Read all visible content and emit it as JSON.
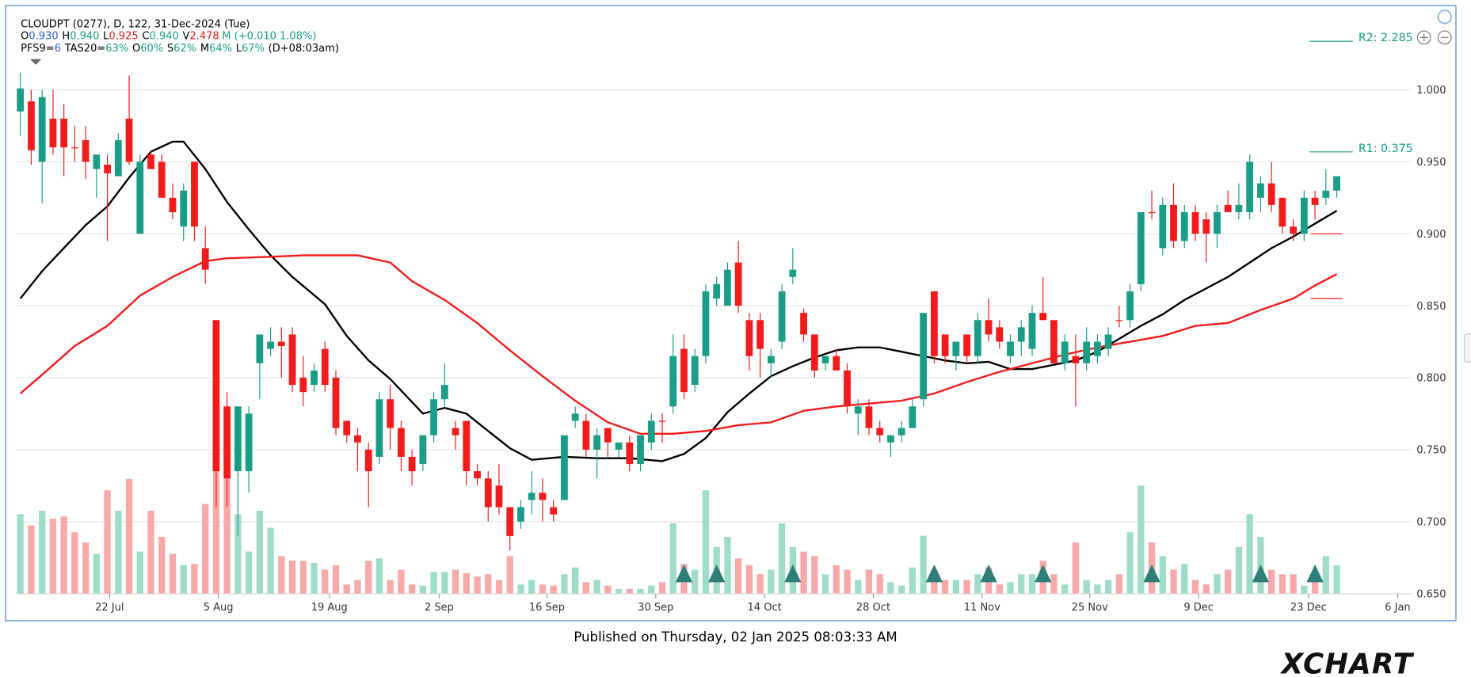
{
  "chart_data": {
    "type": "candlestick",
    "header": {
      "title": "CLOUDPT (0277), D, 122, 31-Dec-2024 (Tue)",
      "quote": [
        {
          "label": "O",
          "value": "0.930",
          "color": "#2a5fd0"
        },
        {
          "label": "H",
          "value": "0.940",
          "color": "#18a085"
        },
        {
          "label": "L",
          "value": "0.925",
          "color": "#e02020"
        },
        {
          "label": "C",
          "value": "0.940",
          "color": "#18a085"
        },
        {
          "label": "V",
          "value": "2.478",
          "color": "#e02020"
        }
      ],
      "quote_suffix": "M (+0.010 1.08%)",
      "indicators": [
        {
          "label": "PFS9=",
          "value": "6",
          "color": "#2a5fd0"
        },
        {
          "label": "TAS20=",
          "value": "63%",
          "color": "#18a085"
        },
        {
          "label": "O",
          "value": "60%",
          "color": "#18a085"
        },
        {
          "label": "S",
          "value": "62%",
          "color": "#18a085"
        },
        {
          "label": "M",
          "value": "64%",
          "color": "#18a085"
        },
        {
          "label": "L",
          "value": "67%",
          "color": "#18a085"
        }
      ],
      "indicators_suffix": "(D+08:03am)"
    },
    "pivots": [
      {
        "label": "R2: 2.285"
      },
      {
        "label": "R1: 0.375"
      }
    ],
    "up_color": "#1a9c86",
    "down_color": "#f21b1b",
    "volume_up_color": "#9fdcc8",
    "volume_down_color": "#f7a8a8",
    "signal_color": "#2f7f78",
    "open": [
      0.985,
      0.992,
      0.95,
      0.98,
      0.98,
      0.96,
      0.965,
      0.945,
      0.948,
      0.94,
      0.98,
      0.9,
      0.955,
      0.95,
      0.925,
      0.905,
      0.95,
      0.89,
      0.84,
      0.78,
      0.735,
      0.735,
      0.81,
      0.82,
      0.825,
      0.83,
      0.8,
      0.795,
      0.82,
      0.8,
      0.77,
      0.76,
      0.75,
      0.745,
      0.785,
      0.765,
      0.745,
      0.74,
      0.76,
      0.785,
      0.765,
      0.77,
      0.735,
      0.73,
      0.725,
      0.71,
      0.7,
      0.715,
      0.72,
      0.71,
      0.715,
      0.77,
      0.77,
      0.75,
      0.765,
      0.75,
      0.755,
      0.74,
      0.755,
      0.77,
      0.78,
      0.82,
      0.795,
      0.815,
      0.855,
      0.85,
      0.88,
      0.84,
      0.84,
      0.81,
      0.825,
      0.87,
      0.845,
      0.83,
      0.81,
      0.815,
      0.805,
      0.775,
      0.78,
      0.765,
      0.755,
      0.76,
      0.765,
      0.785,
      0.86,
      0.83,
      0.815,
      0.83,
      0.815,
      0.84,
      0.835,
      0.815,
      0.825,
      0.82,
      0.845,
      0.84,
      0.81,
      0.815,
      0.81,
      0.815,
      0.82,
      0.84,
      0.84,
      0.865,
      0.915,
      0.89,
      0.92,
      0.895,
      0.915,
      0.91,
      0.9,
      0.92,
      0.915,
      0.915,
      0.925,
      0.935,
      0.925,
      0.905,
      0.9,
      0.925,
      0.925,
      0.93
    ],
    "high": [
      1.012,
      1.0,
      1.0,
      1.0,
      0.99,
      0.975,
      0.975,
      0.955,
      0.955,
      0.97,
      1.01,
      0.955,
      0.958,
      0.955,
      0.935,
      0.935,
      0.95,
      0.905,
      0.84,
      0.79,
      0.78,
      0.78,
      0.83,
      0.835,
      0.835,
      0.835,
      0.815,
      0.81,
      0.825,
      0.805,
      0.77,
      0.765,
      0.755,
      0.79,
      0.795,
      0.77,
      0.75,
      0.76,
      0.79,
      0.81,
      0.77,
      0.77,
      0.74,
      0.735,
      0.74,
      0.71,
      0.715,
      0.735,
      0.73,
      0.715,
      0.76,
      0.78,
      0.775,
      0.765,
      0.765,
      0.755,
      0.76,
      0.76,
      0.775,
      0.775,
      0.83,
      0.83,
      0.82,
      0.865,
      0.87,
      0.88,
      0.895,
      0.845,
      0.845,
      0.82,
      0.865,
      0.89,
      0.848,
      0.83,
      0.815,
      0.82,
      0.81,
      0.785,
      0.785,
      0.77,
      0.76,
      0.77,
      0.785,
      0.845,
      0.86,
      0.83,
      0.825,
      0.83,
      0.845,
      0.855,
      0.84,
      0.83,
      0.84,
      0.85,
      0.87,
      0.84,
      0.83,
      0.83,
      0.835,
      0.83,
      0.835,
      0.85,
      0.865,
      0.915,
      0.93,
      0.925,
      0.935,
      0.92,
      0.92,
      0.915,
      0.92,
      0.93,
      0.935,
      0.955,
      0.94,
      0.95,
      0.925,
      0.91,
      0.93,
      0.93,
      0.945,
      0.94
    ],
    "low": [
      0.968,
      0.948,
      0.921,
      0.955,
      0.94,
      0.95,
      0.938,
      0.925,
      0.895,
      0.94,
      0.948,
      0.9,
      0.945,
      0.925,
      0.91,
      0.895,
      0.895,
      0.865,
      0.71,
      0.71,
      0.69,
      0.72,
      0.785,
      0.815,
      0.8,
      0.79,
      0.78,
      0.79,
      0.79,
      0.76,
      0.755,
      0.735,
      0.71,
      0.74,
      0.75,
      0.735,
      0.725,
      0.735,
      0.755,
      0.78,
      0.75,
      0.725,
      0.725,
      0.7,
      0.705,
      0.68,
      0.695,
      0.705,
      0.7,
      0.7,
      0.715,
      0.765,
      0.745,
      0.73,
      0.745,
      0.745,
      0.735,
      0.735,
      0.75,
      0.755,
      0.775,
      0.785,
      0.79,
      0.81,
      0.85,
      0.85,
      0.845,
      0.805,
      0.8,
      0.8,
      0.82,
      0.865,
      0.825,
      0.8,
      0.805,
      0.805,
      0.775,
      0.76,
      0.76,
      0.755,
      0.745,
      0.755,
      0.765,
      0.78,
      0.81,
      0.81,
      0.805,
      0.81,
      0.81,
      0.825,
      0.82,
      0.81,
      0.815,
      0.815,
      0.84,
      0.81,
      0.805,
      0.78,
      0.805,
      0.81,
      0.815,
      0.835,
      0.835,
      0.86,
      0.91,
      0.885,
      0.89,
      0.89,
      0.895,
      0.88,
      0.89,
      0.915,
      0.91,
      0.91,
      0.915,
      0.915,
      0.9,
      0.895,
      0.895,
      0.91,
      0.92,
      0.925
    ],
    "close": [
      1.001,
      0.958,
      0.995,
      0.96,
      0.96,
      0.96,
      0.95,
      0.955,
      0.942,
      0.965,
      0.95,
      0.95,
      0.945,
      0.925,
      0.915,
      0.93,
      0.905,
      0.875,
      0.735,
      0.73,
      0.78,
      0.775,
      0.83,
      0.825,
      0.822,
      0.795,
      0.79,
      0.805,
      0.795,
      0.765,
      0.76,
      0.755,
      0.735,
      0.785,
      0.765,
      0.745,
      0.735,
      0.76,
      0.785,
      0.795,
      0.76,
      0.735,
      0.73,
      0.71,
      0.71,
      0.69,
      0.71,
      0.72,
      0.715,
      0.705,
      0.76,
      0.775,
      0.75,
      0.76,
      0.755,
      0.755,
      0.74,
      0.76,
      0.77,
      0.77,
      0.815,
      0.79,
      0.815,
      0.86,
      0.865,
      0.875,
      0.85,
      0.815,
      0.82,
      0.815,
      0.86,
      0.875,
      0.83,
      0.805,
      0.815,
      0.805,
      0.78,
      0.78,
      0.765,
      0.76,
      0.76,
      0.765,
      0.78,
      0.845,
      0.815,
      0.815,
      0.825,
      0.815,
      0.84,
      0.83,
      0.825,
      0.825,
      0.835,
      0.845,
      0.84,
      0.81,
      0.825,
      0.81,
      0.825,
      0.825,
      0.83,
      0.84,
      0.86,
      0.915,
      0.915,
      0.92,
      0.895,
      0.915,
      0.9,
      0.9,
      0.915,
      0.915,
      0.92,
      0.95,
      0.935,
      0.92,
      0.905,
      0.9,
      0.925,
      0.92,
      0.93,
      0.94
    ],
    "volume": [
      7.0,
      6.0,
      7.3,
      6.6,
      6.8,
      5.4,
      4.5,
      3.5,
      9.1,
      7.3,
      10.1,
      3.7,
      7.3,
      5.0,
      3.5,
      2.5,
      2.6,
      7.9,
      11.6,
      11.6,
      7.0,
      3.7,
      7.3,
      5.8,
      3.3,
      2.9,
      2.9,
      2.7,
      2.1,
      2.5,
      0.8,
      1.2,
      2.9,
      3.1,
      1.2,
      2.1,
      0.8,
      0.7,
      1.9,
      1.9,
      2.1,
      1.8,
      1.5,
      1.7,
      1.2,
      3.3,
      0.8,
      1.2,
      0.8,
      0.7,
      1.7,
      2.3,
      1.0,
      1.2,
      0.7,
      0.4,
      0.4,
      0.4,
      0.7,
      1.0,
      6.2,
      2.6,
      2.1,
      9.1,
      4.1,
      5.0,
      3.1,
      2.5,
      1.7,
      2.1,
      6.2,
      4.1,
      3.7,
      3.3,
      1.7,
      2.5,
      2.1,
      1.2,
      2.1,
      1.7,
      1.0,
      0.7,
      2.3,
      5.1,
      2.1,
      1.2,
      1.2,
      1.2,
      1.7,
      2.3,
      0.8,
      1.0,
      1.7,
      1.7,
      2.9,
      1.7,
      0.8,
      4.5,
      1.2,
      0.8,
      1.2,
      1.7,
      5.4,
      9.5,
      4.5,
      3.3,
      2.1,
      2.6,
      1.2,
      0.8,
      1.7,
      2.1,
      4.1,
      7.0,
      5.0,
      2.1,
      1.7,
      1.7,
      0.7,
      1.7,
      3.3,
      2.478
    ],
    "vlim": [
      0,
      51
    ],
    "lines": [
      {
        "color": "#000000",
        "x": [
          0,
          2,
          4,
          6,
          8,
          10,
          12,
          14,
          15,
          17,
          19,
          21,
          23,
          25,
          28,
          30,
          32,
          34,
          37,
          39,
          41,
          43,
          45,
          47,
          50,
          53,
          56,
          59,
          61,
          63,
          65,
          67,
          69,
          71,
          73,
          75,
          77,
          79,
          81,
          83,
          85,
          87,
          89,
          91,
          93,
          95,
          97,
          99,
          101,
          103,
          105,
          107,
          109,
          111,
          113,
          115,
          117,
          119,
          121
        ],
        "values": [
          0.855,
          0.874,
          0.89,
          0.906,
          0.919,
          0.939,
          0.957,
          0.964,
          0.964,
          0.945,
          0.922,
          0.903,
          0.885,
          0.87,
          0.851,
          0.829,
          0.812,
          0.799,
          0.775,
          0.779,
          0.775,
          0.763,
          0.751,
          0.743,
          0.745,
          0.744,
          0.744,
          0.742,
          0.747,
          0.758,
          0.776,
          0.789,
          0.801,
          0.808,
          0.814,
          0.819,
          0.821,
          0.821,
          0.818,
          0.815,
          0.812,
          0.81,
          0.811,
          0.806,
          0.806,
          0.809,
          0.812,
          0.818,
          0.827,
          0.836,
          0.844,
          0.854,
          0.862,
          0.87,
          0.88,
          0.89,
          0.898,
          0.907,
          0.916
        ]
      },
      {
        "color": "#f21b1b",
        "x": [
          0,
          2,
          5,
          8,
          11,
          14,
          17,
          19,
          23,
          26,
          29,
          31,
          34,
          36,
          39,
          42,
          45,
          48,
          51,
          54,
          57,
          60,
          63,
          66,
          69,
          72,
          75,
          78,
          81,
          84,
          87,
          90,
          93,
          96,
          99,
          102,
          105,
          108,
          111,
          114,
          117,
          119,
          121
        ],
        "values": [
          0.789,
          0.802,
          0.822,
          0.836,
          0.857,
          0.87,
          0.881,
          0.883,
          0.884,
          0.885,
          0.885,
          0.885,
          0.88,
          0.867,
          0.854,
          0.838,
          0.819,
          0.801,
          0.784,
          0.769,
          0.761,
          0.761,
          0.763,
          0.767,
          0.769,
          0.777,
          0.78,
          0.782,
          0.784,
          0.789,
          0.797,
          0.804,
          0.81,
          0.816,
          0.821,
          0.825,
          0.829,
          0.836,
          0.838,
          0.847,
          0.855,
          0.864,
          0.872
        ]
      }
    ],
    "levels": [
      0.9,
      0.855
    ],
    "level_color": "#f21b1b",
    "signals": [
      61,
      64,
      71,
      84,
      89,
      94,
      104,
      114,
      119
    ],
    "xlim": [
      -0.4,
      127.9
    ],
    "xticks": [
      {
        "value": 8.2,
        "label": "22 Jul"
      },
      {
        "value": 18.2,
        "label": "5 Aug"
      },
      {
        "value": 28.4,
        "label": "19 Aug"
      },
      {
        "value": 38.5,
        "label": "2 Sep"
      },
      {
        "value": 48.4,
        "label": "16 Sep"
      },
      {
        "value": 58.4,
        "label": "30 Sep"
      },
      {
        "value": 68.4,
        "label": "14 Oct"
      },
      {
        "value": 78.4,
        "label": "28 Oct"
      },
      {
        "value": 88.4,
        "label": "11 Nov"
      },
      {
        "value": 98.3,
        "label": "25 Nov"
      },
      {
        "value": 108.3,
        "label": "9 Dec"
      },
      {
        "value": 118.4,
        "label": "23 Dec"
      },
      {
        "value": 126.6,
        "label": "6 Jan"
      }
    ],
    "ylim": [
      0.65,
      1.052
    ],
    "yticks": [
      {
        "value": 0.65,
        "label": "0.650"
      },
      {
        "value": 0.7,
        "label": "0.700"
      },
      {
        "value": 0.75,
        "label": "0.750"
      },
      {
        "value": 0.8,
        "label": "0.800"
      },
      {
        "value": 0.85,
        "label": "0.850"
      },
      {
        "value": 0.9,
        "label": "0.900"
      },
      {
        "value": 0.95,
        "label": "0.950"
      },
      {
        "value": 1.0,
        "label": "1.000"
      }
    ],
    "grid": true
  },
  "footer": {
    "published": "Published on Thursday, 02 Jan 2025 08:03:33 AM",
    "logo": "XCHART"
  }
}
